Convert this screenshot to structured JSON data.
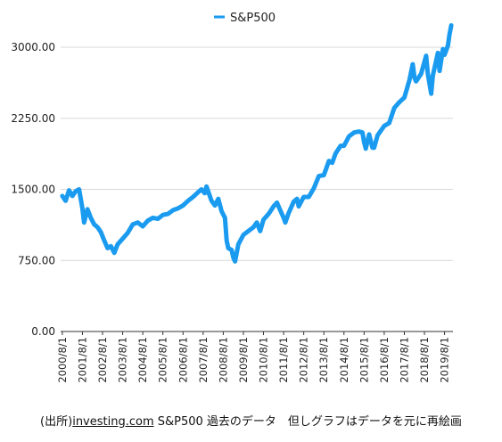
{
  "colors": {
    "line": "#1a9bf0",
    "grid": "#d8d8d8",
    "axis": "#333333"
  },
  "chart_data": {
    "type": "line",
    "title": "",
    "xlabel": "",
    "ylabel": "",
    "legend": {
      "position": "top-center",
      "entries": [
        "S&P500"
      ]
    },
    "grid": {
      "y": true,
      "x": false
    },
    "ylim": [
      0,
      3000
    ],
    "y_ticks": [
      "0.00",
      "750.00",
      "1500.00",
      "2250.00",
      "3000.00"
    ],
    "x_tick_labels": [
      "2000/8/1",
      "2001/8/1",
      "2002/8/1",
      "2003/8/1",
      "2004/8/1",
      "2005/8/1",
      "2006/8/1",
      "2007/8/1",
      "2008/8/1",
      "2009/8/1",
      "2010/8/1",
      "2011/8/1",
      "2012/8/1",
      "2013/8/1",
      "2014/8/1",
      "2015/8/1",
      "2016/8/1",
      "2017/8/1",
      "2018/8/1",
      "2019/8/1"
    ],
    "series": [
      {
        "name": "S&P500",
        "x": [
          "2000/8/1",
          "2000/10/1",
          "2000/12/1",
          "2001/2/1",
          "2001/4/1",
          "2001/6/1",
          "2001/8/1",
          "2001/9/1",
          "2001/11/1",
          "2002/1/1",
          "2002/3/1",
          "2002/5/1",
          "2002/7/1",
          "2002/9/1",
          "2002/11/1",
          "2003/1/1",
          "2003/3/1",
          "2003/5/1",
          "2003/8/1",
          "2003/11/1",
          "2004/2/1",
          "2004/5/1",
          "2004/8/1",
          "2004/11/1",
          "2005/2/1",
          "2005/5/1",
          "2005/8/1",
          "2005/11/1",
          "2006/2/1",
          "2006/5/1",
          "2006/8/1",
          "2006/11/1",
          "2007/2/1",
          "2007/5/1",
          "2007/7/1",
          "2007/9/1",
          "2007/10/1",
          "2008/1/1",
          "2008/3/1",
          "2008/5/1",
          "2008/7/1",
          "2008/9/1",
          "2008/10/1",
          "2008/11/1",
          "2009/1/1",
          "2009/2/1",
          "2009/3/1",
          "2009/5/1",
          "2009/8/1",
          "2009/11/1",
          "2010/2/1",
          "2010/4/1",
          "2010/6/1",
          "2010/8/1",
          "2010/11/1",
          "2011/2/1",
          "2011/4/1",
          "2011/6/1",
          "2011/8/1",
          "2011/9/1",
          "2011/11/1",
          "2012/2/1",
          "2012/4/1",
          "2012/5/1",
          "2012/8/1",
          "2012/11/1",
          "2013/2/1",
          "2013/5/1",
          "2013/8/1",
          "2013/11/1",
          "2014/1/1",
          "2014/3/1",
          "2014/6/1",
          "2014/8/1",
          "2014/11/1",
          "2015/2/1",
          "2015/5/1",
          "2015/7/1",
          "2015/8/1",
          "2015/9/1",
          "2015/11/1",
          "2016/1/1",
          "2016/2/1",
          "2016/4/1",
          "2016/8/1",
          "2016/11/1",
          "2017/2/1",
          "2017/5/1",
          "2017/8/1",
          "2017/11/1",
          "2018/1/1",
          "2018/2/1",
          "2018/3/1",
          "2018/6/1",
          "2018/9/1",
          "2018/10/1",
          "2018/12/1",
          "2019/1/1",
          "2019/4/1",
          "2019/5/1",
          "2019/7/1",
          "2019/8/1",
          "2019/10/1",
          "2019/11/1",
          "2019/12/1"
        ],
        "values": [
          1430,
          1380,
          1490,
          1430,
          1480,
          1500,
          1300,
          1150,
          1290,
          1200,
          1130,
          1100,
          1050,
          960,
          880,
          900,
          830,
          920,
          980,
          1040,
          1130,
          1150,
          1110,
          1170,
          1200,
          1190,
          1230,
          1240,
          1280,
          1300,
          1330,
          1380,
          1420,
          1470,
          1500,
          1460,
          1530,
          1380,
          1330,
          1400,
          1270,
          1200,
          960,
          880,
          860,
          780,
          740,
          920,
          1020,
          1060,
          1100,
          1150,
          1060,
          1180,
          1240,
          1320,
          1360,
          1280,
          1200,
          1150,
          1250,
          1370,
          1400,
          1320,
          1420,
          1420,
          1510,
          1640,
          1650,
          1800,
          1780,
          1880,
          1960,
          1960,
          2060,
          2100,
          2110,
          2100,
          2000,
          1930,
          2080,
          1940,
          1940,
          2070,
          2170,
          2200,
          2360,
          2420,
          2470,
          2650,
          2820,
          2680,
          2640,
          2720,
          2910,
          2720,
          2510,
          2700,
          2940,
          2750,
          2980,
          2920,
          3020,
          3140,
          3230
        ]
      }
    ],
    "x_range": [
      "2000/7/1",
      "2020/1/1"
    ]
  },
  "source_note": {
    "prefix": "(出所)",
    "link": "investing.com",
    "suffix": " S&P500 過去のデータ　但しグラフはデータを元に再絵画"
  }
}
